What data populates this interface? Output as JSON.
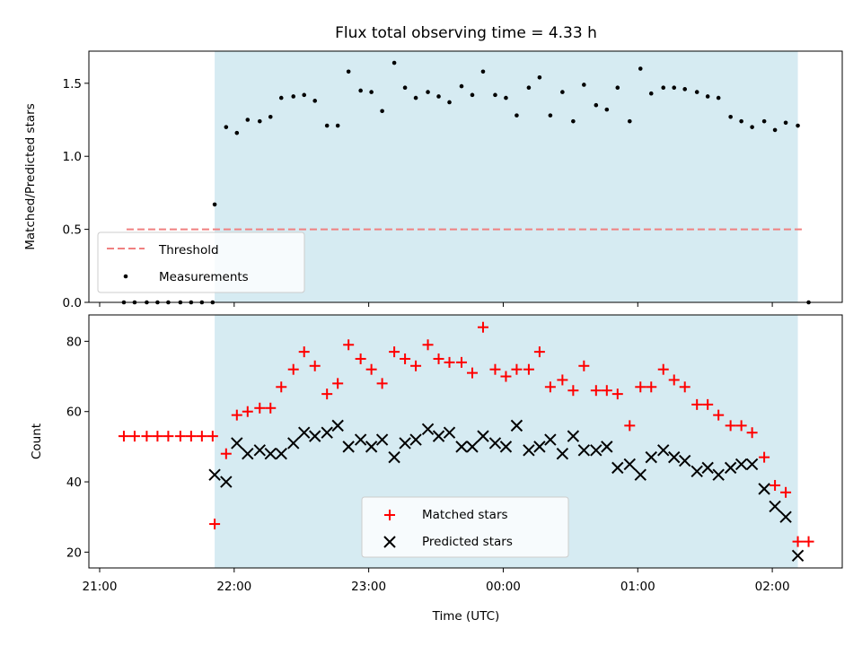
{
  "chart_data": {
    "title": "Flux total observing time = 4.33 h",
    "shared_xlabel": "Time (UTC)",
    "x_unit": "hours since 21:00 UTC",
    "x_ticks": [
      {
        "v": 0,
        "label": "21:00"
      },
      {
        "v": 1,
        "label": "22:00"
      },
      {
        "v": 2,
        "label": "23:00"
      },
      {
        "v": 3,
        "label": "00:00"
      },
      {
        "v": 4,
        "label": "01:00"
      },
      {
        "v": 5,
        "label": "02:00"
      }
    ],
    "xlim": [
      -0.08,
      5.52
    ],
    "observing_window": {
      "start": 0.855,
      "end": 5.19,
      "color": "#add8e6"
    },
    "panels": [
      {
        "type": "scatter",
        "ylabel": "Matched/Predicted stars",
        "ylim": [
          0,
          1.72
        ],
        "y_ticks": [
          {
            "v": 0,
            "label": "0.0"
          },
          {
            "v": 0.5,
            "label": "0.5"
          },
          {
            "v": 1.0,
            "label": "1.0"
          },
          {
            "v": 1.5,
            "label": "1.5"
          }
        ],
        "threshold": {
          "name": "Threshold",
          "value": 0.5,
          "x": [
            0.2,
            5.23
          ],
          "color": "#f08080"
        },
        "legend": {
          "position": "lower-left",
          "entries": [
            "Threshold",
            "Measurements"
          ]
        },
        "series": [
          {
            "name": "Measurements",
            "marker": "dot",
            "color": "#000000",
            "x": [
              0.18,
              0.26,
              0.35,
              0.43,
              0.51,
              0.6,
              0.68,
              0.76,
              0.84,
              0.855,
              0.94,
              1.02,
              1.1,
              1.19,
              1.27,
              1.35,
              1.44,
              1.52,
              1.6,
              1.69,
              1.77,
              1.85,
              1.94,
              2.02,
              2.1,
              2.19,
              2.27,
              2.35,
              2.44,
              2.52,
              2.6,
              2.69,
              2.77,
              2.85,
              2.94,
              3.02,
              3.1,
              3.19,
              3.27,
              3.35,
              3.44,
              3.52,
              3.6,
              3.69,
              3.77,
              3.85,
              3.94,
              4.02,
              4.1,
              4.19,
              4.27,
              4.35,
              4.44,
              4.52,
              4.6,
              4.69,
              4.77,
              4.85,
              4.94,
              5.02,
              5.1,
              5.19,
              5.27
            ],
            "y": [
              0,
              0,
              0,
              0,
              0,
              0,
              0,
              0,
              0,
              0.67,
              1.2,
              1.16,
              1.25,
              1.24,
              1.27,
              1.4,
              1.41,
              1.42,
              1.38,
              1.21,
              1.21,
              1.58,
              1.45,
              1.44,
              1.31,
              1.64,
              1.47,
              1.4,
              1.44,
              1.41,
              1.37,
              1.48,
              1.42,
              1.58,
              1.42,
              1.4,
              1.28,
              1.47,
              1.54,
              1.28,
              1.44,
              1.24,
              1.49,
              1.35,
              1.32,
              1.47,
              1.24,
              1.6,
              1.43,
              1.47,
              1.47,
              1.46,
              1.44,
              1.41,
              1.4,
              1.27,
              1.24,
              1.2,
              1.24,
              1.18,
              1.23,
              1.21,
              0
            ]
          }
        ]
      },
      {
        "type": "scatter",
        "ylabel": "Count",
        "ylim": [
          15.5,
          87.5
        ],
        "y_ticks": [
          {
            "v": 20,
            "label": "20"
          },
          {
            "v": 40,
            "label": "40"
          },
          {
            "v": 60,
            "label": "60"
          },
          {
            "v": 80,
            "label": "80"
          }
        ],
        "legend": {
          "position": "lower-center",
          "entries": [
            "Matched stars",
            "Predicted stars"
          ]
        },
        "series": [
          {
            "name": "Matched stars",
            "marker": "plus",
            "color": "#ff0000",
            "x": [
              0.18,
              0.26,
              0.35,
              0.43,
              0.51,
              0.6,
              0.68,
              0.76,
              0.84,
              0.855,
              0.94,
              1.02,
              1.1,
              1.19,
              1.27,
              1.35,
              1.44,
              1.52,
              1.6,
              1.69,
              1.77,
              1.85,
              1.94,
              2.02,
              2.1,
              2.19,
              2.27,
              2.35,
              2.44,
              2.52,
              2.6,
              2.69,
              2.77,
              2.85,
              2.94,
              3.02,
              3.1,
              3.19,
              3.27,
              3.35,
              3.44,
              3.52,
              3.6,
              3.69,
              3.77,
              3.85,
              3.94,
              4.02,
              4.1,
              4.19,
              4.27,
              4.35,
              4.44,
              4.52,
              4.6,
              4.69,
              4.77,
              4.85,
              4.94,
              5.02,
              5.1,
              5.19,
              5.27
            ],
            "y": [
              53,
              53,
              53,
              53,
              53,
              53,
              53,
              53,
              53,
              28,
              48,
              59,
              60,
              61,
              61,
              67,
              72,
              77,
              73,
              65,
              68,
              79,
              75,
              72,
              68,
              77,
              75,
              73,
              79,
              75,
              74,
              74,
              71,
              84,
              72,
              70,
              72,
              72,
              77,
              67,
              69,
              66,
              73,
              66,
              66,
              65,
              56,
              67,
              67,
              72,
              69,
              67,
              62,
              62,
              59,
              56,
              56,
              54,
              47,
              39,
              37,
              23,
              23
            ]
          },
          {
            "name": "Predicted stars",
            "marker": "x",
            "color": "#000000",
            "x": [
              0.855,
              0.94,
              1.02,
              1.1,
              1.19,
              1.27,
              1.35,
              1.44,
              1.52,
              1.6,
              1.69,
              1.77,
              1.85,
              1.94,
              2.02,
              2.1,
              2.19,
              2.27,
              2.35,
              2.44,
              2.52,
              2.6,
              2.69,
              2.77,
              2.85,
              2.94,
              3.02,
              3.1,
              3.19,
              3.27,
              3.35,
              3.44,
              3.52,
              3.6,
              3.69,
              3.77,
              3.85,
              3.94,
              4.02,
              4.1,
              4.19,
              4.27,
              4.35,
              4.44,
              4.52,
              4.6,
              4.69,
              4.77,
              4.85,
              4.94,
              5.02,
              5.1,
              5.19
            ],
            "y": [
              42,
              40,
              51,
              48,
              49,
              48,
              48,
              51,
              54,
              53,
              54,
              56,
              50,
              52,
              50,
              52,
              47,
              51,
              52,
              55,
              53,
              54,
              50,
              50,
              53,
              51,
              50,
              56,
              49,
              50,
              52,
              48,
              53,
              49,
              49,
              50,
              44,
              45,
              42,
              47,
              49,
              47,
              46,
              43,
              44,
              42,
              44,
              45,
              45,
              38,
              33,
              30,
              19
            ]
          }
        ]
      }
    ]
  }
}
